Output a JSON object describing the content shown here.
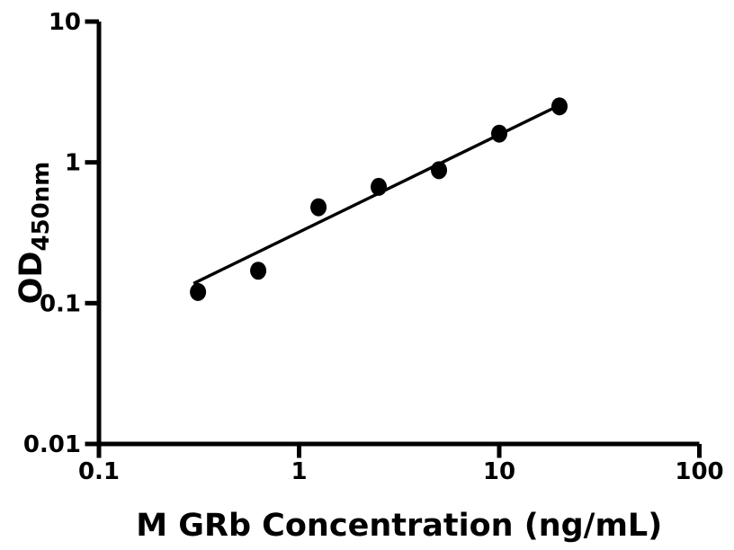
{
  "figure": {
    "background_color": "#ffffff",
    "foreground_color": "#000000"
  },
  "chart_data": {
    "type": "scatter",
    "title": "",
    "xlabel": "M GRb Concentration (ng/mL)",
    "ylabel_main": "OD",
    "ylabel_sub": "450nm",
    "x_scale": "log",
    "y_scale": "log",
    "xlim": [
      0.1,
      100
    ],
    "ylim": [
      0.01,
      10
    ],
    "grid": false,
    "legend": null,
    "marker_color": "#000000",
    "line_color": "#000000",
    "x_ticks": [
      {
        "value": 0.1,
        "label": "0.1"
      },
      {
        "value": 1,
        "label": "1"
      },
      {
        "value": 10,
        "label": "10"
      },
      {
        "value": 100,
        "label": "100"
      }
    ],
    "y_ticks": [
      {
        "value": 0.01,
        "label": "0.01"
      },
      {
        "value": 0.1,
        "label": "0.1"
      },
      {
        "value": 1,
        "label": "1"
      },
      {
        "value": 10,
        "label": "10"
      }
    ],
    "series": [
      {
        "name": "standard-curve-points",
        "points": [
          {
            "x": 0.3125,
            "y": 0.12
          },
          {
            "x": 0.625,
            "y": 0.17
          },
          {
            "x": 1.25,
            "y": 0.48
          },
          {
            "x": 2.5,
            "y": 0.67
          },
          {
            "x": 5,
            "y": 0.88
          },
          {
            "x": 10,
            "y": 1.6
          },
          {
            "x": 20,
            "y": 2.5
          }
        ]
      }
    ],
    "trendline": {
      "x1": 0.297,
      "y1": 0.138,
      "x2": 20.4,
      "y2": 2.58
    }
  }
}
